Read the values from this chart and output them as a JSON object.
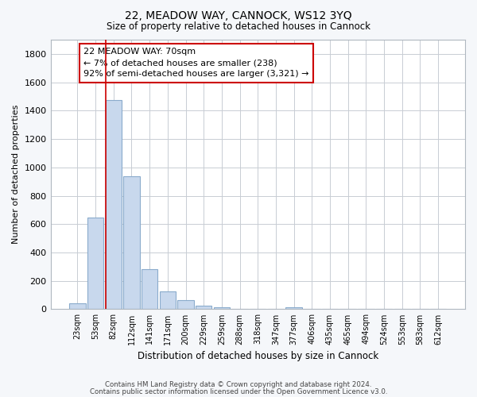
{
  "title1": "22, MEADOW WAY, CANNOCK, WS12 3YQ",
  "title2": "Size of property relative to detached houses in Cannock",
  "xlabel": "Distribution of detached houses by size in Cannock",
  "ylabel": "Number of detached properties",
  "categories": [
    "23sqm",
    "53sqm",
    "82sqm",
    "112sqm",
    "141sqm",
    "171sqm",
    "200sqm",
    "229sqm",
    "259sqm",
    "288sqm",
    "318sqm",
    "347sqm",
    "377sqm",
    "406sqm",
    "435sqm",
    "465sqm",
    "494sqm",
    "524sqm",
    "553sqm",
    "583sqm",
    "612sqm"
  ],
  "values": [
    40,
    648,
    1473,
    938,
    285,
    128,
    65,
    25,
    15,
    0,
    0,
    0,
    14,
    0,
    0,
    0,
    0,
    0,
    0,
    0,
    0
  ],
  "bar_color": "#c8d8ed",
  "bar_edge_color": "#8aabcc",
  "annotation_line1": "22 MEADOW WAY: 70sqm",
  "annotation_line2": "← 7% of detached houses are smaller (238)",
  "annotation_line3": "92% of semi-detached houses are larger (3,321) →",
  "annotation_box_color": "#ffffff",
  "annotation_box_edge_color": "#cc0000",
  "vline_color": "#cc0000",
  "vline_x": 1.57,
  "ylim": [
    0,
    1900
  ],
  "yticks": [
    0,
    200,
    400,
    600,
    800,
    1000,
    1200,
    1400,
    1600,
    1800
  ],
  "footer1": "Contains HM Land Registry data © Crown copyright and database right 2024.",
  "footer2": "Contains public sector information licensed under the Open Government Licence v3.0.",
  "bg_color": "#f5f7fa",
  "plot_bg_color": "#ffffff",
  "grid_color": "#c8cdd4"
}
